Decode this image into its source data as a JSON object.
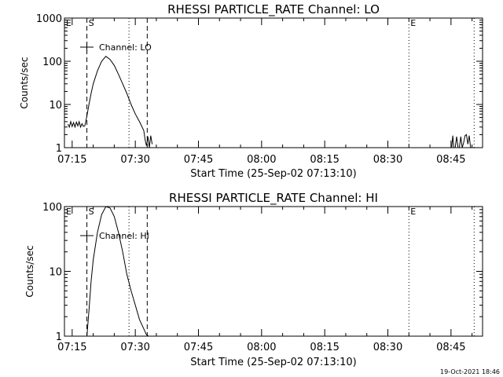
{
  "footer_date": "19-Oct-2021 18:46",
  "chart_data": [
    {
      "type": "line",
      "title": "RHESSI PARTICLE_RATE Channel: LO",
      "xlabel": "Start Time (25-Sep-02 07:13:10)",
      "ylabel": "Counts/sec",
      "y_scale": "log",
      "ylim": [
        1,
        1000
      ],
      "y_ticks": [
        1,
        10,
        100,
        1000
      ],
      "y_tick_labels": [
        "1",
        "10",
        "100",
        "1000"
      ],
      "xlim": [
        "07:13:10",
        "08:52:30"
      ],
      "x_ticks": [
        "07:15",
        "07:30",
        "07:45",
        "08:00",
        "08:15",
        "08:30",
        "08:45"
      ],
      "legend": {
        "label": "Channel: LO",
        "position": "top-left"
      },
      "markers": [
        {
          "label": "E",
          "time": "07:13:10",
          "style": "none"
        },
        {
          "label": "S",
          "time": "07:18:30",
          "style": "dashed"
        },
        {
          "label": "",
          "time": "07:28:30",
          "style": "dotted"
        },
        {
          "label": "",
          "time": "07:32:50",
          "style": "dashed"
        },
        {
          "label": "E",
          "time": "08:35:00",
          "style": "dotted"
        },
        {
          "label": "",
          "time": "08:50:30",
          "style": "dotted"
        }
      ],
      "series": [
        {
          "x": [
            "07:14:00",
            "07:14:20",
            "07:14:40",
            "07:15:00",
            "07:15:20",
            "07:15:40",
            "07:16:00",
            "07:16:20",
            "07:16:40",
            "07:17:00",
            "07:17:20",
            "07:17:40",
            "07:18:00",
            "07:18:30",
            "07:19:00",
            "07:19:30",
            "07:20:00",
            "07:21:00",
            "07:22:00",
            "07:23:00",
            "07:24:00",
            "07:25:00",
            "07:26:00",
            "07:27:00",
            "07:28:00",
            "07:29:00",
            "07:30:00",
            "07:31:00",
            "07:32:00",
            "07:32:20",
            "07:32:40",
            "07:33:00",
            "07:33:20",
            "07:33:40",
            "07:34:00"
          ],
          "y": [
            3.5,
            3.0,
            4.0,
            3.1,
            3.8,
            3.0,
            3.9,
            3.2,
            4.0,
            3.0,
            3.6,
            3.1,
            3.2,
            5.5,
            10,
            18,
            30,
            60,
            100,
            130,
            110,
            80,
            50,
            30,
            18,
            10,
            6,
            4,
            2.5,
            1.5,
            1.1,
            1.8,
            1.0,
            1.9,
            1.2
          ]
        },
        {
          "x": [
            "08:45:10",
            "08:45:25",
            "08:45:40",
            "08:46:00",
            "08:46:20",
            "08:46:40",
            "08:47:00",
            "08:47:20",
            "08:47:40",
            "08:48:00",
            "08:48:20",
            "08:48:40",
            "08:49:00",
            "08:49:20",
            "08:49:40",
            "08:50:00"
          ],
          "y": [
            1.0,
            1.9,
            1.0,
            1.0,
            1.8,
            1.0,
            1.0,
            1.8,
            1.0,
            1.3,
            1.9,
            2.0,
            1.2,
            1.9,
            1.0,
            1.0
          ]
        }
      ]
    },
    {
      "type": "line",
      "title": "RHESSI PARTICLE_RATE Channel: HI",
      "xlabel": "Start Time (25-Sep-02 07:13:10)",
      "ylabel": "Counts/sec",
      "y_scale": "log",
      "ylim": [
        1,
        100
      ],
      "y_ticks": [
        1,
        10,
        100
      ],
      "y_tick_labels": [
        "1",
        "10",
        "100"
      ],
      "xlim": [
        "07:13:10",
        "08:52:30"
      ],
      "x_ticks": [
        "07:15",
        "07:30",
        "07:45",
        "08:00",
        "08:15",
        "08:30",
        "08:45"
      ],
      "legend": {
        "label": "Channel: HI",
        "position": "top-left"
      },
      "markers": [
        {
          "label": "E",
          "time": "07:13:10",
          "style": "none"
        },
        {
          "label": "S",
          "time": "07:18:30",
          "style": "dashed"
        },
        {
          "label": "",
          "time": "07:28:30",
          "style": "dotted"
        },
        {
          "label": "",
          "time": "07:32:50",
          "style": "dashed"
        },
        {
          "label": "E",
          "time": "08:35:00",
          "style": "dotted"
        },
        {
          "label": "",
          "time": "08:50:30",
          "style": "dotted"
        }
      ],
      "series": [
        {
          "x": [
            "07:18:30",
            "07:19:00",
            "07:19:30",
            "07:20:00",
            "07:21:00",
            "07:22:00",
            "07:23:00",
            "07:24:00",
            "07:25:00",
            "07:26:00",
            "07:27:00",
            "07:28:00",
            "07:29:00",
            "07:30:00",
            "07:31:00",
            "07:32:00",
            "07:32:40",
            "07:33:10"
          ],
          "y": [
            1.0,
            2.5,
            7,
            15,
            40,
            75,
            100,
            95,
            70,
            40,
            20,
            9,
            5,
            3,
            1.8,
            1.3,
            1.05,
            1.0
          ]
        }
      ]
    }
  ]
}
